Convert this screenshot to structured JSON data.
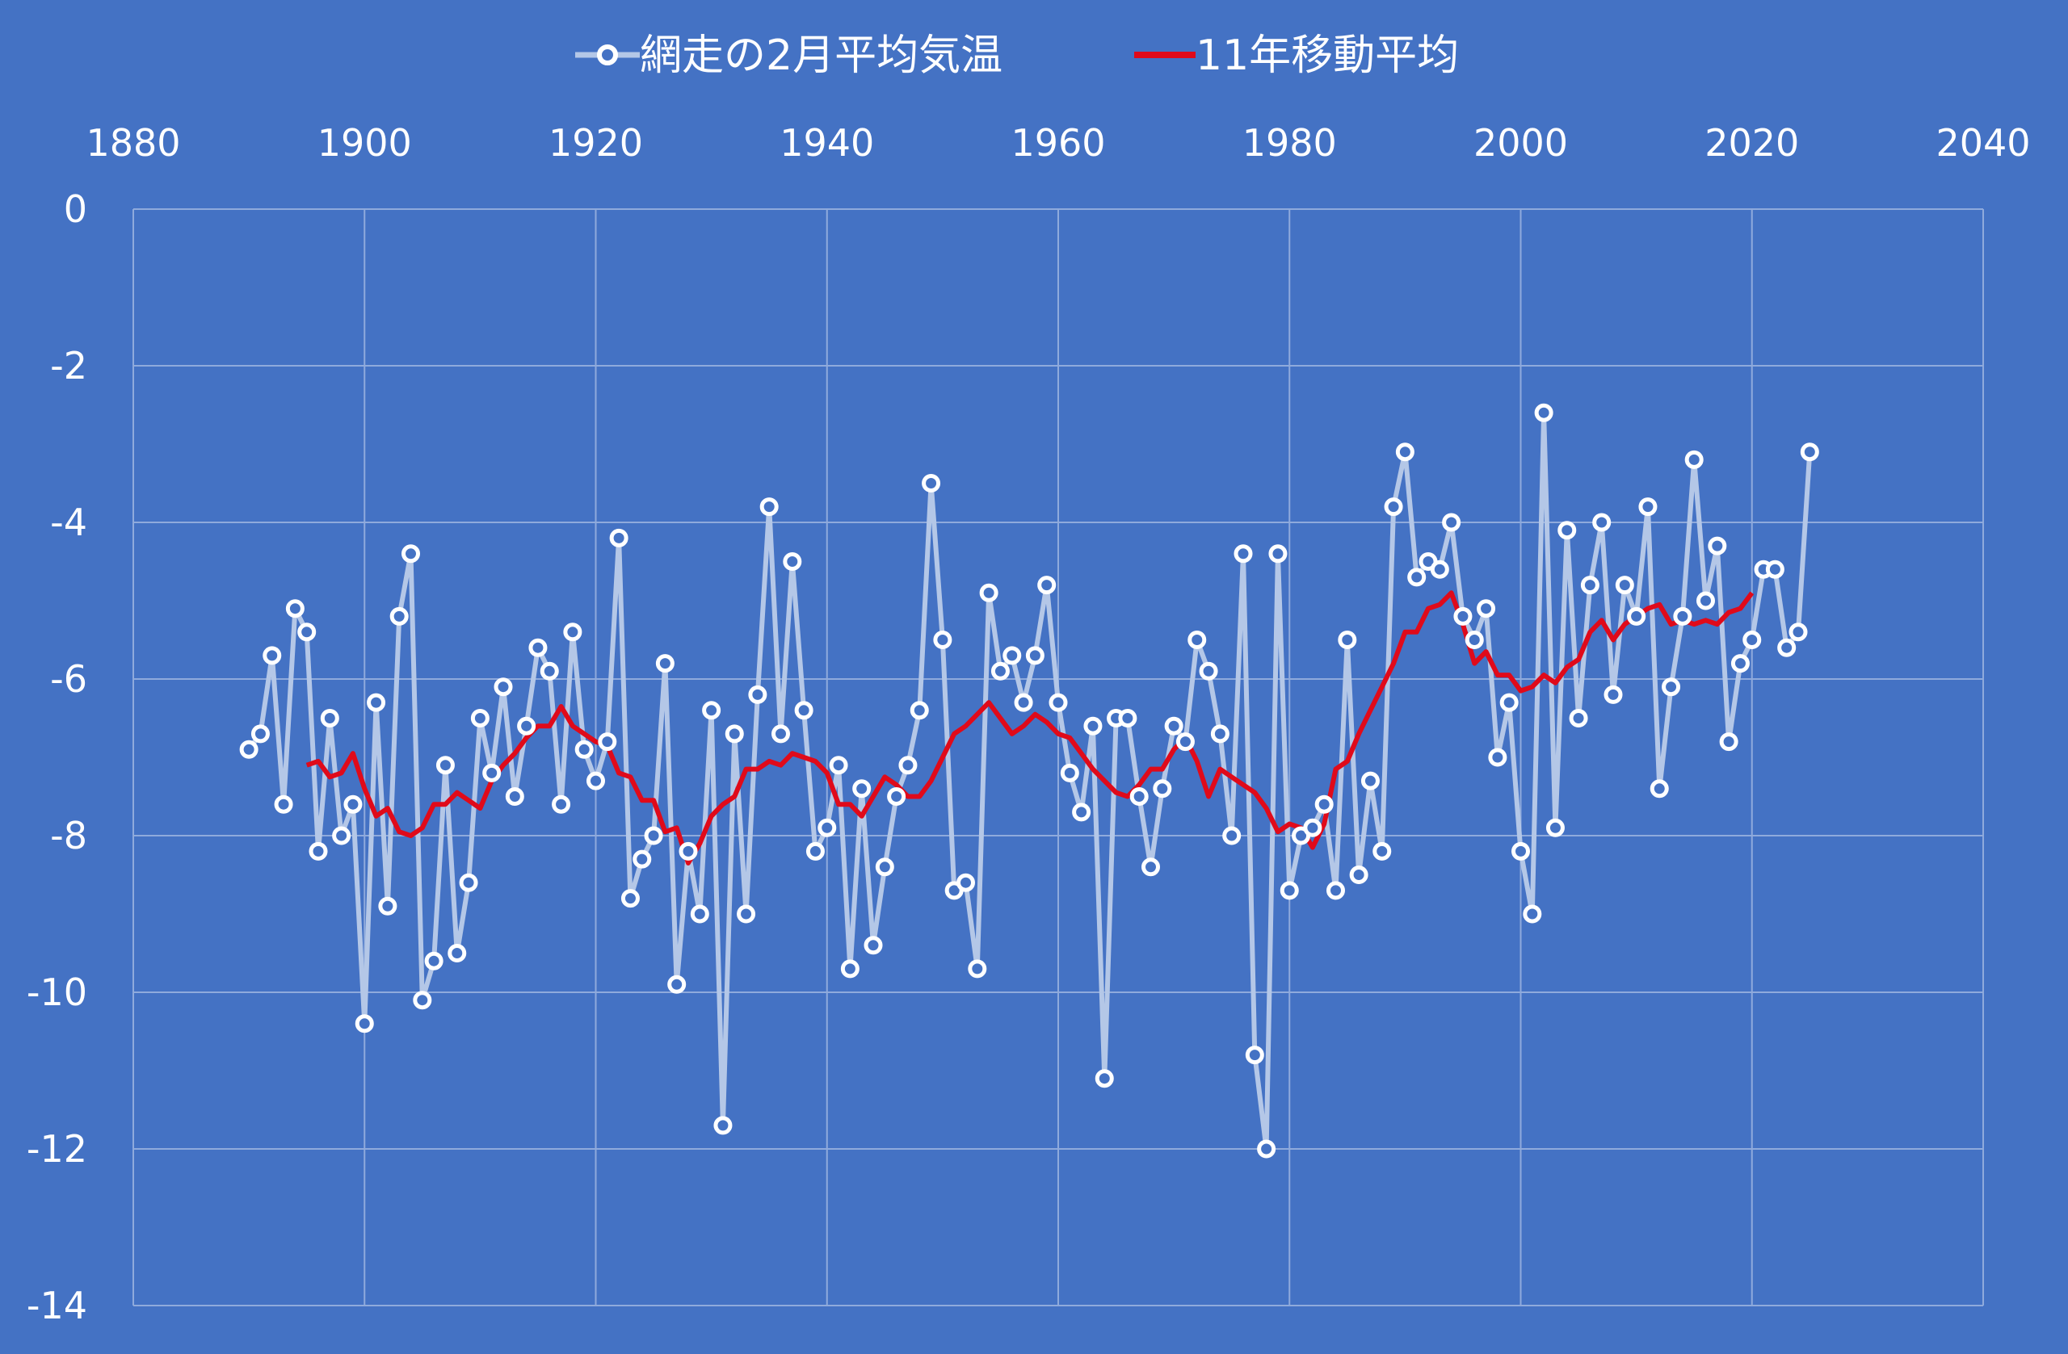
{
  "colors": {
    "background": "#4472c4",
    "grid": "#8faadc",
    "series_temp": "#b4c7e7",
    "marker_fill": "#4472c4",
    "marker_stroke": "#ffffff",
    "moving_avg": "#e00a1a",
    "text": "#ffffff"
  },
  "chart_data": {
    "type": "line",
    "title": "",
    "xlabel": "",
    "ylabel": "",
    "xlim": [
      1880,
      2040
    ],
    "ylim": [
      -14,
      0
    ],
    "x_ticks": [
      "1880",
      "1900",
      "1920",
      "1940",
      "1960",
      "1980",
      "2000",
      "2020",
      "2040"
    ],
    "y_ticks": [
      "0",
      "-2",
      "-4",
      "-6",
      "-8",
      "-10",
      "-12",
      "-14"
    ],
    "x_axis_position": "top",
    "grid": true,
    "legend_position": "top",
    "series": [
      {
        "name": "網走の2月平均気温",
        "style": "line-with-markers",
        "x": [
          1890,
          1891,
          1892,
          1893,
          1894,
          1895,
          1896,
          1897,
          1898,
          1899,
          1900,
          1901,
          1902,
          1903,
          1904,
          1905,
          1906,
          1907,
          1908,
          1909,
          1910,
          1911,
          1912,
          1913,
          1914,
          1915,
          1916,
          1917,
          1918,
          1919,
          1920,
          1921,
          1922,
          1923,
          1924,
          1925,
          1926,
          1927,
          1928,
          1929,
          1930,
          1931,
          1932,
          1933,
          1934,
          1935,
          1936,
          1937,
          1938,
          1939,
          1940,
          1941,
          1942,
          1943,
          1944,
          1945,
          1946,
          1947,
          1948,
          1949,
          1950,
          1951,
          1952,
          1953,
          1954,
          1955,
          1956,
          1957,
          1958,
          1959,
          1960,
          1961,
          1962,
          1963,
          1964,
          1965,
          1966,
          1967,
          1968,
          1969,
          1970,
          1971,
          1972,
          1973,
          1974,
          1975,
          1976,
          1977,
          1978,
          1979,
          1980,
          1981,
          1982,
          1983,
          1984,
          1985,
          1986,
          1987,
          1988,
          1989,
          1990,
          1991,
          1992,
          1993,
          1994,
          1995,
          1996,
          1997,
          1998,
          1999,
          2000,
          2001,
          2002,
          2003,
          2004,
          2005,
          2006,
          2007,
          2008,
          2009,
          2010,
          2011,
          2012,
          2013,
          2014,
          2015,
          2016,
          2017,
          2018,
          2019,
          2020,
          2021,
          2022,
          2023,
          2024,
          2025
        ],
        "y": [
          -6.9,
          -6.7,
          -5.7,
          -7.6,
          -5.1,
          -5.4,
          -8.2,
          -6.5,
          -8.0,
          -7.6,
          -10.4,
          -6.3,
          -8.9,
          -5.2,
          -4.4,
          -10.1,
          -9.6,
          -7.1,
          -9.5,
          -8.6,
          -6.5,
          -7.2,
          -6.1,
          -7.5,
          -6.6,
          -5.6,
          -5.9,
          -7.6,
          -5.4,
          -6.9,
          -7.3,
          -6.8,
          -4.2,
          -8.8,
          -8.3,
          -8.0,
          -5.8,
          -9.9,
          -8.2,
          -9.0,
          -6.4,
          -11.7,
          -6.7,
          -9.0,
          -6.2,
          -3.8,
          -6.7,
          -4.5,
          -6.4,
          -8.2,
          -7.9,
          -7.1,
          -9.7,
          -7.4,
          -9.4,
          -8.4,
          -7.5,
          -7.1,
          -6.4,
          -3.5,
          -5.5,
          -8.7,
          -8.6,
          -9.7,
          -4.9,
          -5.9,
          -5.7,
          -6.3,
          -5.7,
          -4.8,
          -6.3,
          -7.2,
          -7.7,
          -6.6,
          -11.1,
          -6.5,
          -6.5,
          -7.5,
          -8.4,
          -7.4,
          -6.6,
          -6.8,
          -5.5,
          -5.9,
          -6.7,
          -8.0,
          -4.4,
          -10.8,
          -12.0,
          -4.4,
          -8.7,
          -8.0,
          -7.9,
          -7.6,
          -8.7,
          -5.5,
          -8.5,
          -7.3,
          -8.2,
          -3.8,
          -3.1,
          -4.7,
          -4.5,
          -4.6,
          -4.0,
          -5.2,
          -5.5,
          -5.1,
          -7.0,
          -6.3,
          -8.2,
          -9.0,
          -2.6,
          -7.9,
          -4.1,
          -6.5,
          -4.8,
          -4.0,
          -6.2,
          -4.8,
          -5.2,
          -3.8,
          -7.4,
          -6.1,
          -5.2,
          -3.2,
          -5.0,
          -4.3,
          -6.8,
          -5.8,
          -5.5,
          -4.6,
          -4.6,
          -5.6,
          -5.4,
          -3.1
        ]
      },
      {
        "name": "11年移動平均",
        "style": "line",
        "x": [
          1895,
          1896,
          1897,
          1898,
          1899,
          1900,
          1901,
          1902,
          1903,
          1904,
          1905,
          1906,
          1907,
          1908,
          1909,
          1910,
          1911,
          1912,
          1913,
          1914,
          1915,
          1916,
          1917,
          1918,
          1919,
          1920,
          1921,
          1922,
          1923,
          1924,
          1925,
          1926,
          1927,
          1928,
          1929,
          1930,
          1931,
          1932,
          1933,
          1934,
          1935,
          1936,
          1937,
          1938,
          1939,
          1940,
          1941,
          1942,
          1943,
          1944,
          1945,
          1946,
          1947,
          1948,
          1949,
          1950,
          1951,
          1952,
          1953,
          1954,
          1955,
          1956,
          1957,
          1958,
          1959,
          1960,
          1961,
          1962,
          1963,
          1964,
          1965,
          1966,
          1967,
          1968,
          1969,
          1970,
          1971,
          1972,
          1973,
          1974,
          1975,
          1976,
          1977,
          1978,
          1979,
          1980,
          1981,
          1982,
          1983,
          1984,
          1985,
          1986,
          1987,
          1988,
          1989,
          1990,
          1991,
          1992,
          1993,
          1994,
          1995,
          1996,
          1997,
          1998,
          1999,
          2000,
          2001,
          2002,
          2003,
          2004,
          2005,
          2006,
          2007,
          2008,
          2009,
          2010,
          2011,
          2012,
          2013,
          2014,
          2015,
          2016,
          2017,
          2018,
          2019,
          2020
        ],
        "y": [
          -7.1,
          -7.05,
          -7.25,
          -7.2,
          -6.95,
          -7.4,
          -7.75,
          -7.65,
          -7.95,
          -8.0,
          -7.9,
          -7.6,
          -7.6,
          -7.45,
          -7.55,
          -7.65,
          -7.3,
          -7.1,
          -6.95,
          -6.75,
          -6.6,
          -6.6,
          -6.35,
          -6.6,
          -6.7,
          -6.8,
          -6.85,
          -7.2,
          -7.25,
          -7.55,
          -7.55,
          -7.95,
          -7.9,
          -8.35,
          -8.1,
          -7.75,
          -7.6,
          -7.5,
          -7.15,
          -7.15,
          -7.05,
          -7.1,
          -6.95,
          -7.0,
          -7.05,
          -7.2,
          -7.6,
          -7.6,
          -7.75,
          -7.5,
          -7.25,
          -7.35,
          -7.5,
          -7.5,
          -7.3,
          -7.0,
          -6.7,
          -6.6,
          -6.45,
          -6.3,
          -6.5,
          -6.7,
          -6.6,
          -6.45,
          -6.55,
          -6.7,
          -6.75,
          -6.95,
          -7.15,
          -7.3,
          -7.45,
          -7.5,
          -7.35,
          -7.15,
          -7.15,
          -6.9,
          -6.75,
          -7.05,
          -7.5,
          -7.15,
          -7.25,
          -7.35,
          -7.45,
          -7.65,
          -7.95,
          -7.85,
          -7.9,
          -8.15,
          -7.85,
          -7.15,
          -7.05,
          -6.7,
          -6.4,
          -6.1,
          -5.8,
          -5.4,
          -5.4,
          -5.1,
          -5.05,
          -4.9,
          -5.3,
          -5.8,
          -5.65,
          -5.95,
          -5.95,
          -6.15,
          -6.1,
          -5.95,
          -6.05,
          -5.85,
          -5.75,
          -5.4,
          -5.25,
          -5.5,
          -5.3,
          -5.2,
          -5.1,
          -5.05,
          -5.3,
          -5.25,
          -5.3,
          -5.25,
          -5.3,
          -5.15,
          -5.1,
          -4.9
        ]
      }
    ]
  }
}
